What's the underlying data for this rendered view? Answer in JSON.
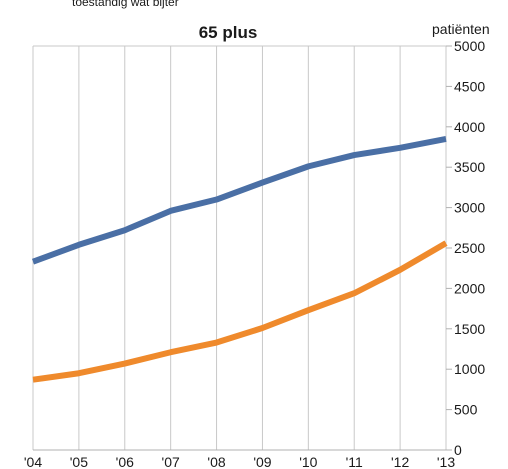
{
  "top_caption": "toestandig wat bijter",
  "chart_data": {
    "type": "line",
    "title": "65 plus",
    "ylabel": "patiënten",
    "xlabel": "",
    "categories": [
      "'04",
      "'05",
      "'06",
      "'07",
      "'08",
      "'09",
      "'10",
      "'11",
      "'12",
      "'13"
    ],
    "y_ticks": [
      "0",
      "500",
      "1000",
      "1500",
      "2000",
      "2500",
      "3000",
      "3500",
      "4000",
      "4500",
      "5000"
    ],
    "ylim": [
      0,
      5000
    ],
    "grid": "vertical",
    "y_axis_side": "right",
    "series": [
      {
        "color": "#4a6fa5",
        "values": [
          2330,
          2540,
          2720,
          2960,
          3100,
          3310,
          3510,
          3650,
          3740,
          3850
        ]
      },
      {
        "color": "#ef8a2c",
        "values": [
          870,
          950,
          1070,
          1210,
          1330,
          1510,
          1730,
          1940,
          2230,
          2560
        ]
      }
    ]
  }
}
